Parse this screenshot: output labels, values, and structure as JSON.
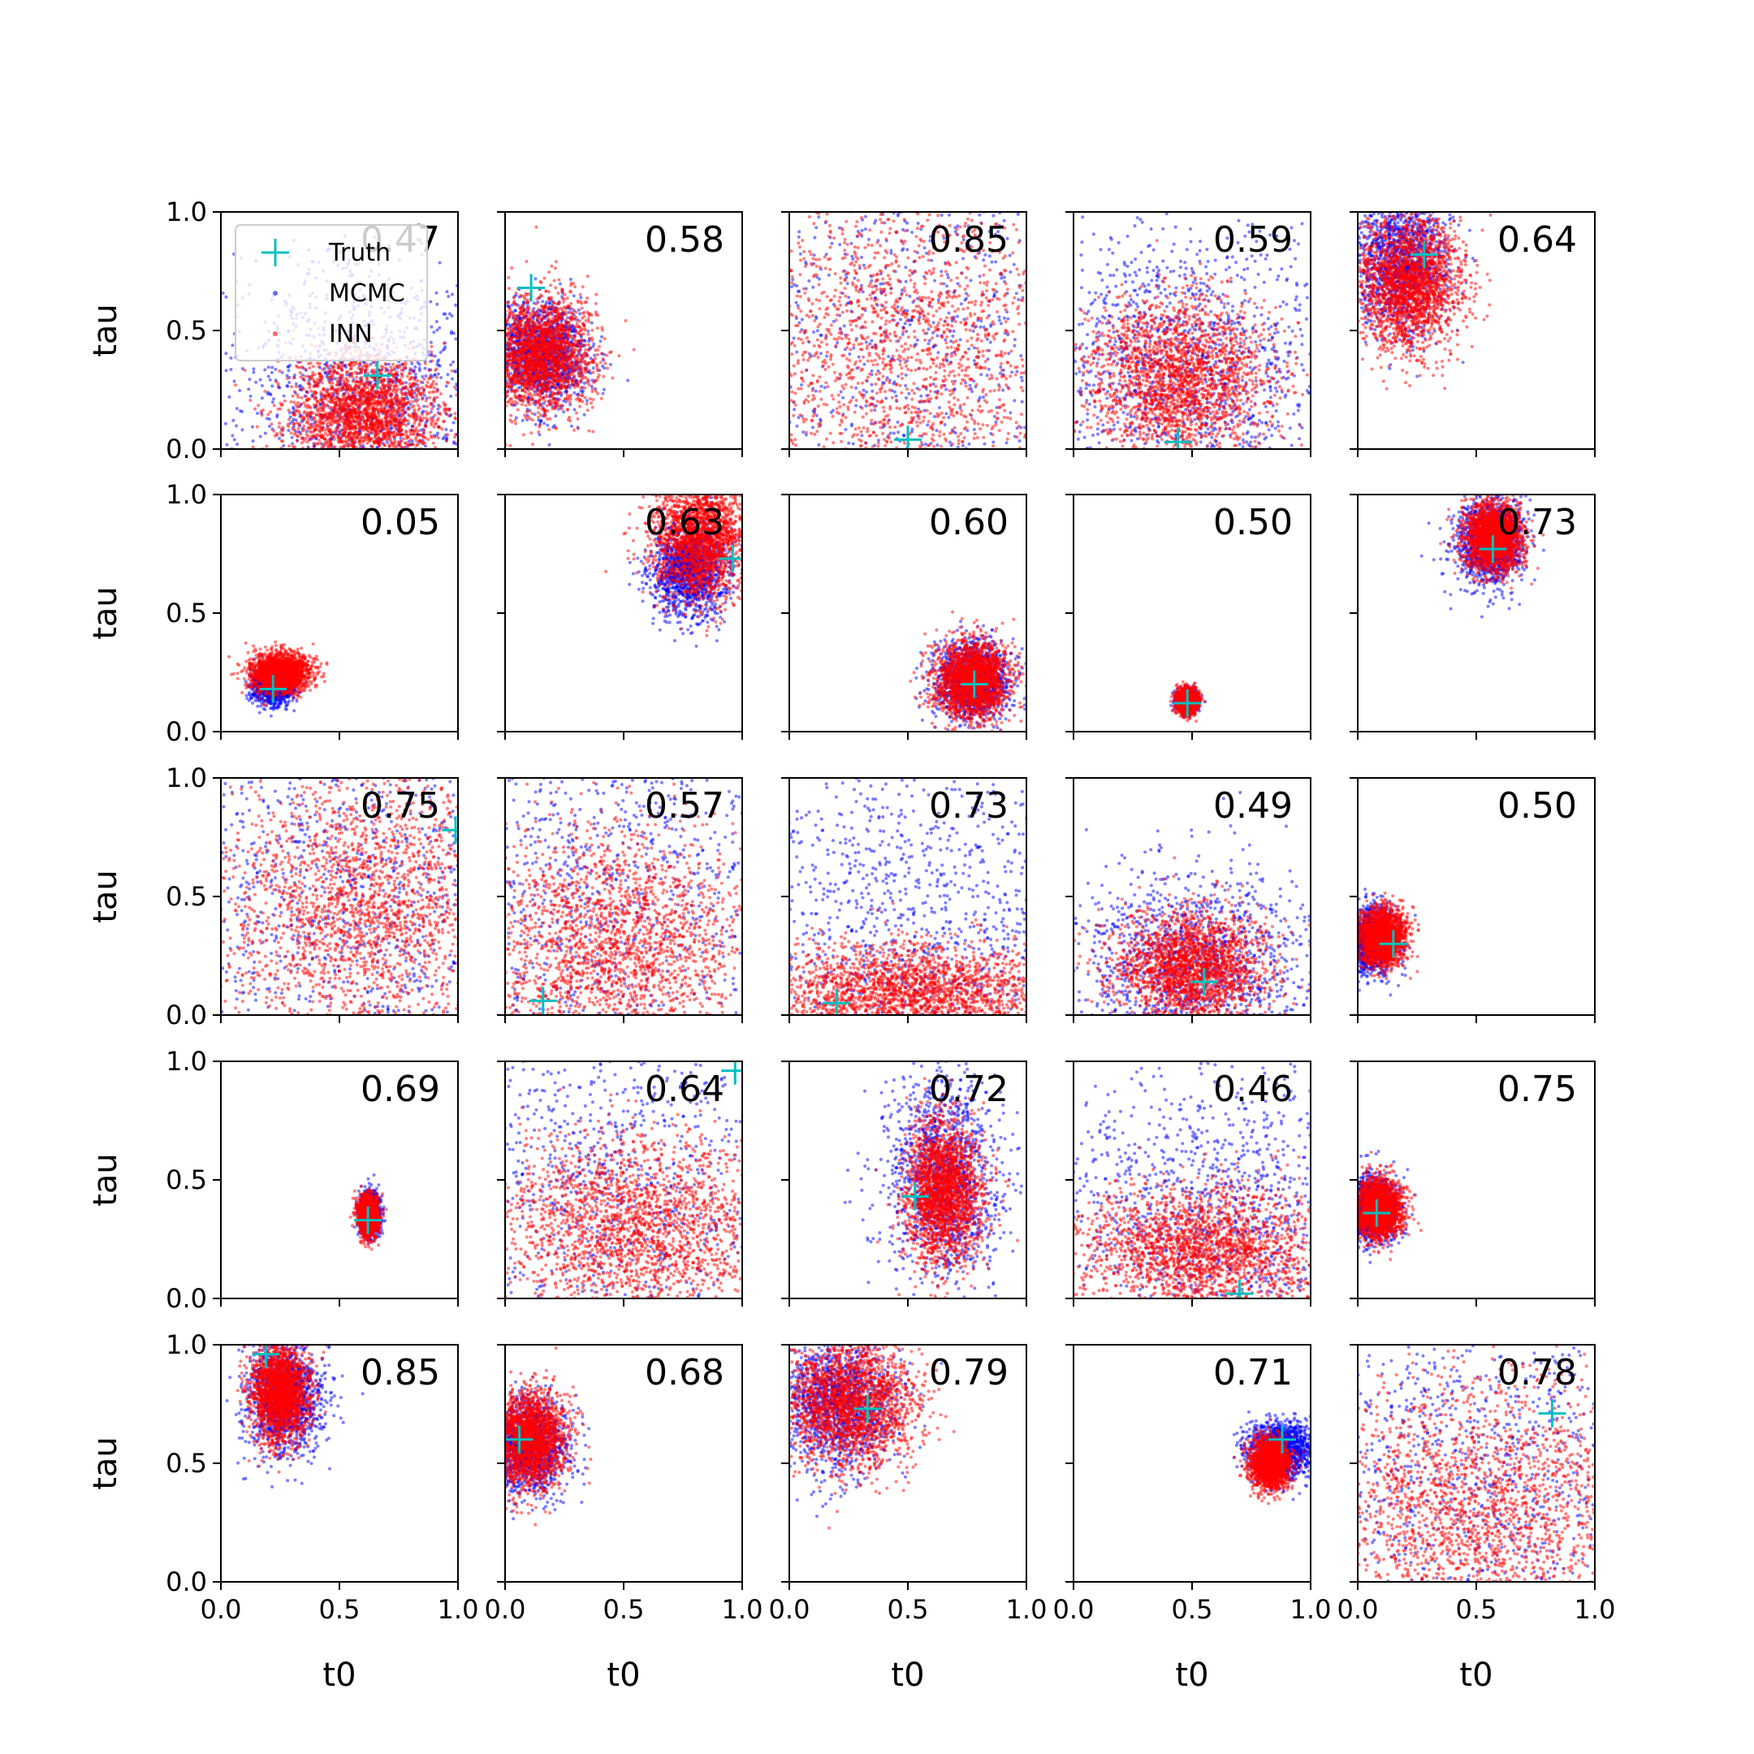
{
  "figure": {
    "x_axis_label": "t0",
    "y_axis_label": "tau",
    "colors": {
      "mcmc": "#0000ff",
      "inn": "#ff0000",
      "truth": "#00bfbf",
      "axes": "#000000"
    }
  },
  "legend": {
    "location": "upper-left of first panel",
    "entries": [
      {
        "label": "Truth",
        "marker": "cross",
        "color": "#00bfbf"
      },
      {
        "label": "MCMC",
        "marker": "dot",
        "color": "#0000ff"
      },
      {
        "label": "INN",
        "marker": "dot",
        "color": "#ff0000"
      }
    ]
  },
  "chart_data": [
    {
      "type": "scatter",
      "row": 0,
      "col": 0,
      "score": "0.47",
      "truth": [
        0.66,
        0.31
      ],
      "inn": {
        "cx": 0.6,
        "cy": 0.15,
        "sx": 0.16,
        "sy": 0.12,
        "rho": 0.0
      },
      "mcmc": {
        "cx": 0.6,
        "cy": 0.2,
        "sx": 0.3,
        "sy": 0.3,
        "rho": 0.0
      },
      "xlim": [
        0,
        1
      ],
      "ylim": [
        0,
        1
      ]
    },
    {
      "type": "scatter",
      "row": 0,
      "col": 1,
      "score": "0.58",
      "truth": [
        0.11,
        0.68
      ],
      "inn": {
        "cx": 0.15,
        "cy": 0.4,
        "sx": 0.11,
        "sy": 0.12,
        "rho": 0.0
      },
      "mcmc": {
        "cx": 0.15,
        "cy": 0.4,
        "sx": 0.1,
        "sy": 0.11,
        "rho": 0.0
      },
      "xlim": [
        0,
        1
      ],
      "ylim": [
        0,
        1
      ]
    },
    {
      "type": "scatter",
      "row": 0,
      "col": 2,
      "score": "0.85",
      "truth": [
        0.5,
        0.04
      ],
      "inn": {
        "cx": 0.5,
        "cy": 0.4,
        "sx": 0.4,
        "sy": 0.4,
        "rho": 0.0
      },
      "mcmc": {
        "cx": 0.5,
        "cy": 0.5,
        "sx": 0.6,
        "sy": 0.6,
        "rho": 0.0
      },
      "xlim": [
        0,
        1
      ],
      "ylim": [
        0,
        1
      ]
    },
    {
      "type": "scatter",
      "row": 0,
      "col": 3,
      "score": "0.59",
      "truth": [
        0.44,
        0.03
      ],
      "inn": {
        "cx": 0.45,
        "cy": 0.3,
        "sx": 0.2,
        "sy": 0.17,
        "rho": 0.0
      },
      "mcmc": {
        "cx": 0.45,
        "cy": 0.35,
        "sx": 0.35,
        "sy": 0.3,
        "rho": 0.0
      },
      "xlim": [
        0,
        1
      ],
      "ylim": [
        0,
        1
      ]
    },
    {
      "type": "scatter",
      "row": 0,
      "col": 4,
      "score": "0.64",
      "truth": [
        0.28,
        0.82
      ],
      "inn": {
        "cx": 0.22,
        "cy": 0.7,
        "sx": 0.11,
        "sy": 0.14,
        "rho": 0.0
      },
      "mcmc": {
        "cx": 0.18,
        "cy": 0.8,
        "sx": 0.1,
        "sy": 0.15,
        "rho": 0.0
      },
      "xlim": [
        0,
        1
      ],
      "ylim": [
        0,
        1
      ]
    },
    {
      "type": "scatter",
      "row": 1,
      "col": 0,
      "score": "0.05",
      "truth": [
        0.22,
        0.18
      ],
      "inn": {
        "cx": 0.25,
        "cy": 0.25,
        "sx": 0.06,
        "sy": 0.04,
        "rho": 0.0
      },
      "mcmc": {
        "cx": 0.22,
        "cy": 0.2,
        "sx": 0.04,
        "sy": 0.04,
        "rho": 0.0
      },
      "xlim": [
        0,
        1
      ],
      "ylim": [
        0,
        1
      ]
    },
    {
      "type": "scatter",
      "row": 1,
      "col": 1,
      "score": "0.63",
      "truth": [
        0.96,
        0.73
      ],
      "inn": {
        "cx": 0.83,
        "cy": 0.82,
        "sx": 0.1,
        "sy": 0.13,
        "rho": 0.0
      },
      "mcmc": {
        "cx": 0.78,
        "cy": 0.68,
        "sx": 0.08,
        "sy": 0.1,
        "rho": 0.0
      },
      "xlim": [
        0,
        1
      ],
      "ylim": [
        0,
        1
      ]
    },
    {
      "type": "scatter",
      "row": 1,
      "col": 2,
      "score": "0.60",
      "truth": [
        0.78,
        0.2
      ],
      "inn": {
        "cx": 0.77,
        "cy": 0.22,
        "sx": 0.08,
        "sy": 0.08,
        "rho": 0.0
      },
      "mcmc": {
        "cx": 0.77,
        "cy": 0.22,
        "sx": 0.08,
        "sy": 0.08,
        "rho": 0.0
      },
      "xlim": [
        0,
        1
      ],
      "ylim": [
        0,
        1
      ]
    },
    {
      "type": "scatter",
      "row": 1,
      "col": 3,
      "score": "0.50",
      "truth": [
        0.48,
        0.12
      ],
      "inn": {
        "cx": 0.48,
        "cy": 0.13,
        "sx": 0.02,
        "sy": 0.025,
        "rho": 0.0
      },
      "mcmc": {
        "cx": 0.48,
        "cy": 0.13,
        "sx": 0.02,
        "sy": 0.02,
        "rho": 0.0
      },
      "xlim": [
        0,
        1
      ],
      "ylim": [
        0,
        1
      ]
    },
    {
      "type": "scatter",
      "row": 1,
      "col": 4,
      "score": "0.73",
      "truth": [
        0.57,
        0.77
      ],
      "inn": {
        "cx": 0.57,
        "cy": 0.82,
        "sx": 0.06,
        "sy": 0.07,
        "rho": 0.0
      },
      "mcmc": {
        "cx": 0.56,
        "cy": 0.8,
        "sx": 0.07,
        "sy": 0.09,
        "rho": 0.0
      },
      "xlim": [
        0,
        1
      ],
      "ylim": [
        0,
        1
      ]
    },
    {
      "type": "scatter",
      "row": 2,
      "col": 0,
      "score": "0.75",
      "truth": [
        0.99,
        0.78
      ],
      "inn": {
        "cx": 0.6,
        "cy": 0.45,
        "sx": 0.3,
        "sy": 0.3,
        "rho": 0.0
      },
      "mcmc": {
        "cx": 0.55,
        "cy": 0.5,
        "sx": 0.5,
        "sy": 0.5,
        "rho": 0.0
      },
      "xlim": [
        0,
        1
      ],
      "ylim": [
        0,
        1
      ]
    },
    {
      "type": "scatter",
      "row": 2,
      "col": 1,
      "score": "0.57",
      "truth": [
        0.16,
        0.06
      ],
      "inn": {
        "cx": 0.45,
        "cy": 0.3,
        "sx": 0.3,
        "sy": 0.25,
        "rho": 0.0
      },
      "mcmc": {
        "cx": 0.4,
        "cy": 0.5,
        "sx": 0.5,
        "sy": 0.5,
        "rho": 0.0
      },
      "xlim": [
        0,
        1
      ],
      "ylim": [
        0,
        1
      ]
    },
    {
      "type": "scatter",
      "row": 2,
      "col": 2,
      "score": "0.73",
      "truth": [
        0.2,
        0.05
      ],
      "inn": {
        "cx": 0.5,
        "cy": 0.1,
        "sx": 0.3,
        "sy": 0.1,
        "rho": 0.0
      },
      "mcmc": {
        "cx": 0.5,
        "cy": 0.35,
        "sx": 0.5,
        "sy": 0.4,
        "rho": 0.0
      },
      "xlim": [
        0,
        1
      ],
      "ylim": [
        0,
        1
      ]
    },
    {
      "type": "scatter",
      "row": 2,
      "col": 3,
      "score": "0.49",
      "truth": [
        0.55,
        0.14
      ],
      "inn": {
        "cx": 0.5,
        "cy": 0.2,
        "sx": 0.16,
        "sy": 0.12,
        "rho": 0.0
      },
      "mcmc": {
        "cx": 0.5,
        "cy": 0.2,
        "sx": 0.25,
        "sy": 0.2,
        "rho": 0.0
      },
      "xlim": [
        0,
        1
      ],
      "ylim": [
        0,
        1
      ]
    },
    {
      "type": "scatter",
      "row": 2,
      "col": 4,
      "score": "0.50",
      "truth": [
        0.15,
        0.3
      ],
      "inn": {
        "cx": 0.1,
        "cy": 0.33,
        "sx": 0.05,
        "sy": 0.06,
        "rho": 0.0
      },
      "mcmc": {
        "cx": 0.06,
        "cy": 0.32,
        "sx": 0.05,
        "sy": 0.07,
        "rho": 0.0
      },
      "xlim": [
        0,
        1
      ],
      "ylim": [
        0,
        1
      ]
    },
    {
      "type": "scatter",
      "row": 3,
      "col": 0,
      "score": "0.69",
      "truth": [
        0.62,
        0.33
      ],
      "inn": {
        "cx": 0.62,
        "cy": 0.35,
        "sx": 0.02,
        "sy": 0.04,
        "rho": 0.0
      },
      "mcmc": {
        "cx": 0.63,
        "cy": 0.36,
        "sx": 0.02,
        "sy": 0.04,
        "rho": 0.0
      },
      "xlim": [
        0,
        1
      ],
      "ylim": [
        0,
        1
      ]
    },
    {
      "type": "scatter",
      "row": 3,
      "col": 1,
      "score": "0.64",
      "truth": [
        0.97,
        0.96
      ],
      "inn": {
        "cx": 0.55,
        "cy": 0.3,
        "sx": 0.3,
        "sy": 0.2,
        "rho": 0.0
      },
      "mcmc": {
        "cx": 0.5,
        "cy": 0.55,
        "sx": 0.5,
        "sy": 0.5,
        "rho": 0.0
      },
      "xlim": [
        0,
        1
      ],
      "ylim": [
        0,
        1
      ]
    },
    {
      "type": "scatter",
      "row": 3,
      "col": 2,
      "score": "0.72",
      "truth": [
        0.53,
        0.43
      ],
      "inn": {
        "cx": 0.65,
        "cy": 0.45,
        "sx": 0.08,
        "sy": 0.15,
        "rho": 0.0
      },
      "mcmc": {
        "cx": 0.65,
        "cy": 0.5,
        "sx": 0.12,
        "sy": 0.22,
        "rho": 0.0
      },
      "xlim": [
        0,
        1
      ],
      "ylim": [
        0,
        1
      ]
    },
    {
      "type": "scatter",
      "row": 3,
      "col": 3,
      "score": "0.46",
      "truth": [
        0.7,
        0.02
      ],
      "inn": {
        "cx": 0.55,
        "cy": 0.2,
        "sx": 0.25,
        "sy": 0.14,
        "rho": 0.0
      },
      "mcmc": {
        "cx": 0.6,
        "cy": 0.35,
        "sx": 0.4,
        "sy": 0.35,
        "rho": 0.0
      },
      "xlim": [
        0,
        1
      ],
      "ylim": [
        0,
        1
      ]
    },
    {
      "type": "scatter",
      "row": 3,
      "col": 4,
      "score": "0.75",
      "truth": [
        0.08,
        0.36
      ],
      "inn": {
        "cx": 0.09,
        "cy": 0.38,
        "sx": 0.05,
        "sy": 0.06,
        "rho": 0.0
      },
      "mcmc": {
        "cx": 0.06,
        "cy": 0.38,
        "sx": 0.05,
        "sy": 0.07,
        "rho": 0.0
      },
      "xlim": [
        0,
        1
      ],
      "ylim": [
        0,
        1
      ]
    },
    {
      "type": "scatter",
      "row": 4,
      "col": 0,
      "score": "0.85",
      "truth": [
        0.19,
        0.96
      ],
      "inn": {
        "cx": 0.25,
        "cy": 0.8,
        "sx": 0.06,
        "sy": 0.1,
        "rho": 0.0
      },
      "mcmc": {
        "cx": 0.27,
        "cy": 0.78,
        "sx": 0.08,
        "sy": 0.12,
        "rho": 0.0
      },
      "xlim": [
        0,
        1
      ],
      "ylim": [
        0,
        1
      ]
    },
    {
      "type": "scatter",
      "row": 4,
      "col": 1,
      "score": "0.68",
      "truth": [
        0.06,
        0.6
      ],
      "inn": {
        "cx": 0.1,
        "cy": 0.6,
        "sx": 0.08,
        "sy": 0.1,
        "rho": 0.0
      },
      "mcmc": {
        "cx": 0.1,
        "cy": 0.58,
        "sx": 0.08,
        "sy": 0.1,
        "rho": 0.0
      },
      "xlim": [
        0,
        1
      ],
      "ylim": [
        0,
        1
      ]
    },
    {
      "type": "scatter",
      "row": 4,
      "col": 2,
      "score": "0.79",
      "truth": [
        0.33,
        0.73
      ],
      "inn": {
        "cx": 0.25,
        "cy": 0.75,
        "sx": 0.14,
        "sy": 0.14,
        "rho": 0.0
      },
      "mcmc": {
        "cx": 0.2,
        "cy": 0.75,
        "sx": 0.12,
        "sy": 0.14,
        "rho": 0.0
      },
      "xlim": [
        0,
        1
      ],
      "ylim": [
        0,
        1
      ]
    },
    {
      "type": "scatter",
      "row": 4,
      "col": 3,
      "score": "0.71",
      "truth": [
        0.88,
        0.6
      ],
      "inn": {
        "cx": 0.83,
        "cy": 0.5,
        "sx": 0.04,
        "sy": 0.05,
        "rho": 0.0
      },
      "mcmc": {
        "cx": 0.88,
        "cy": 0.56,
        "sx": 0.07,
        "sy": 0.06,
        "rho": 0.0
      },
      "xlim": [
        0,
        1
      ],
      "ylim": [
        0,
        1
      ]
    },
    {
      "type": "scatter",
      "row": 4,
      "col": 4,
      "score": "0.78",
      "truth": [
        0.82,
        0.71
      ],
      "inn": {
        "cx": 0.5,
        "cy": 0.3,
        "sx": 0.35,
        "sy": 0.3,
        "rho": 0.0
      },
      "mcmc": {
        "cx": 0.5,
        "cy": 0.5,
        "sx": 0.5,
        "sy": 0.5,
        "rho": 0.0
      },
      "xlim": [
        0,
        1
      ],
      "ylim": [
        0,
        1
      ]
    }
  ]
}
